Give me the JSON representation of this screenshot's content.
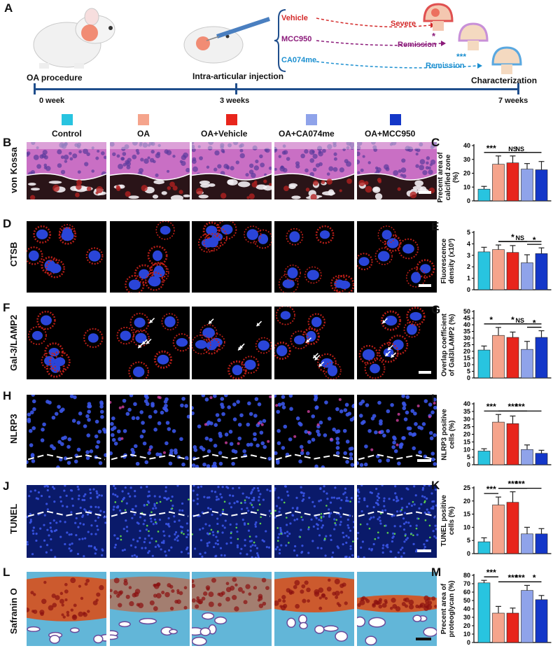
{
  "panel_a": {
    "letter": "A",
    "step_labels": [
      "OA procedure",
      "Intra-articular injection",
      "Characterization"
    ],
    "timeline": [
      "0 week",
      "3 weeks",
      "7 weeks"
    ],
    "treatments": [
      {
        "name": "Vehicle",
        "outcome": "Severe",
        "sig": "",
        "color": "#d42a2a"
      },
      {
        "name": "MCC950",
        "outcome": "Remission",
        "sig": "*",
        "color": "#8b1a7a"
      },
      {
        "name": "CA074me",
        "outcome": "Remission",
        "sig": "***",
        "color": "#1b8fd0"
      }
    ]
  },
  "legend": {
    "items": [
      {
        "label": "Control",
        "color": "#28c4e0"
      },
      {
        "label": "OA",
        "color": "#f5a48c"
      },
      {
        "label": "OA+Vehicle",
        "color": "#e8251c"
      },
      {
        "label": "OA+CA074me",
        "color": "#8fa3ea"
      },
      {
        "label": "OA+MCC950",
        "color": "#1437c8"
      }
    ]
  },
  "rows": [
    {
      "letter": "B",
      "label": "von Kossa",
      "type": "vonkossa"
    },
    {
      "letter": "D",
      "label": "CTSB",
      "type": "fluor"
    },
    {
      "letter": "F",
      "label": "Gal-3/LAMP2",
      "type": "fluor"
    },
    {
      "letter": "H",
      "label": "NLRP3",
      "type": "nuclei"
    },
    {
      "letter": "J",
      "label": "TUNEL",
      "type": "nuclei"
    },
    {
      "letter": "L",
      "label": "Safranin O",
      "type": "safranin"
    }
  ],
  "chart_data": [
    {
      "letter": "C",
      "type": "bar",
      "categories": [
        "Control",
        "OA",
        "OA+Vehicle",
        "OA+CA074me",
        "OA+MCC950"
      ],
      "values": [
        8.5,
        26.5,
        27.5,
        23,
        22.5
      ],
      "errors": [
        2,
        6,
        5,
        4,
        6
      ],
      "ylabel": "Precent area of calcified zone (%)",
      "ylim": [
        0,
        40
      ],
      "yticks": [
        0,
        10,
        20,
        30,
        40
      ],
      "sig": [
        {
          "from": 0,
          "to": 1,
          "text": "***"
        },
        {
          "from": 1,
          "to": 3,
          "text": "NS"
        },
        {
          "from": 1,
          "to": 4,
          "text": "NS"
        }
      ]
    },
    {
      "letter": "E",
      "type": "bar",
      "categories": [
        "Control",
        "OA",
        "OA+Vehicle",
        "OA+CA074me",
        "OA+MCC950"
      ],
      "values": [
        3.3,
        3.5,
        3.25,
        2.35,
        3.15
      ],
      "errors": [
        0.4,
        0.4,
        0.6,
        0.7,
        0.5
      ],
      "ylabel": "Fluorescence density (x10³)",
      "ylim": [
        0,
        5
      ],
      "yticks": [
        0,
        1,
        2,
        3,
        4,
        5
      ],
      "sig": [
        {
          "from": 1,
          "to": 4,
          "text": "NS"
        },
        {
          "from": 1,
          "to": 3,
          "text": "*"
        },
        {
          "from": 3,
          "to": 4,
          "text": "*"
        }
      ]
    },
    {
      "letter": "G",
      "type": "bar",
      "categories": [
        "Control",
        "OA",
        "OA+Vehicle",
        "OA+CA074me",
        "OA+MCC950"
      ],
      "values": [
        21,
        32,
        30.5,
        21.5,
        30.5
      ],
      "errors": [
        3,
        6,
        4,
        6,
        5
      ],
      "ylabel": "Overlap coefficient of Gal3/LAMP2 (%)",
      "ylim": [
        0,
        50
      ],
      "yticks": [
        0,
        5,
        10,
        15,
        20,
        25,
        30,
        35,
        40,
        45,
        50
      ],
      "sig": [
        {
          "from": 0,
          "to": 1,
          "text": "*"
        },
        {
          "from": 1,
          "to": 4,
          "text": "NS"
        },
        {
          "from": 1,
          "to": 3,
          "text": "*"
        },
        {
          "from": 3,
          "to": 4,
          "text": "*"
        }
      ]
    },
    {
      "letter": "I",
      "type": "bar",
      "categories": [
        "Control",
        "OA",
        "OA+Vehicle",
        "OA+CA074me",
        "OA+MCC950"
      ],
      "values": [
        9,
        28,
        27,
        10,
        7.5
      ],
      "errors": [
        1.5,
        5,
        5,
        3,
        2
      ],
      "ylabel": "NLRP3 positive cells (%)",
      "ylim": [
        0,
        40
      ],
      "yticks": [
        0,
        5,
        10,
        15,
        20,
        25,
        30,
        35,
        40
      ],
      "sig": [
        {
          "from": 0,
          "to": 1,
          "text": "***"
        },
        {
          "from": 1,
          "to": 4,
          "text": "***"
        },
        {
          "from": 1,
          "to": 3,
          "text": "***"
        }
      ]
    },
    {
      "letter": "K",
      "type": "bar",
      "categories": [
        "Control",
        "OA",
        "OA+Vehicle",
        "OA+CA074me",
        "OA+MCC950"
      ],
      "values": [
        4.5,
        18.5,
        19.5,
        7.5,
        7.5
      ],
      "errors": [
        1.5,
        3,
        4,
        2.5,
        2
      ],
      "ylabel": "TUNEL positive cells (%)",
      "ylim": [
        0,
        25
      ],
      "yticks": [
        0,
        5,
        10,
        15,
        20,
        25
      ],
      "sig": [
        {
          "from": 0,
          "to": 1,
          "text": "***"
        },
        {
          "from": 1,
          "to": 4,
          "text": "***"
        },
        {
          "from": 1,
          "to": 3,
          "text": "***"
        }
      ]
    },
    {
      "letter": "M",
      "type": "bar",
      "categories": [
        "Control",
        "OA",
        "OA+Vehicle",
        "OA+CA074me",
        "OA+MCC950"
      ],
      "values": [
        71,
        35,
        35,
        62,
        51
      ],
      "errors": [
        3,
        8,
        6,
        6,
        5
      ],
      "ylabel": "Precent area of proteoglycan (%)",
      "ylim": [
        0,
        80
      ],
      "yticks": [
        0,
        10,
        20,
        30,
        40,
        50,
        60,
        70,
        80
      ],
      "sig": [
        {
          "from": 0,
          "to": 1,
          "text": "***"
        },
        {
          "from": 1,
          "to": 4,
          "text": "***"
        },
        {
          "from": 1,
          "to": 3,
          "text": "***"
        },
        {
          "from": 3,
          "to": 4,
          "text": "*"
        }
      ]
    }
  ]
}
